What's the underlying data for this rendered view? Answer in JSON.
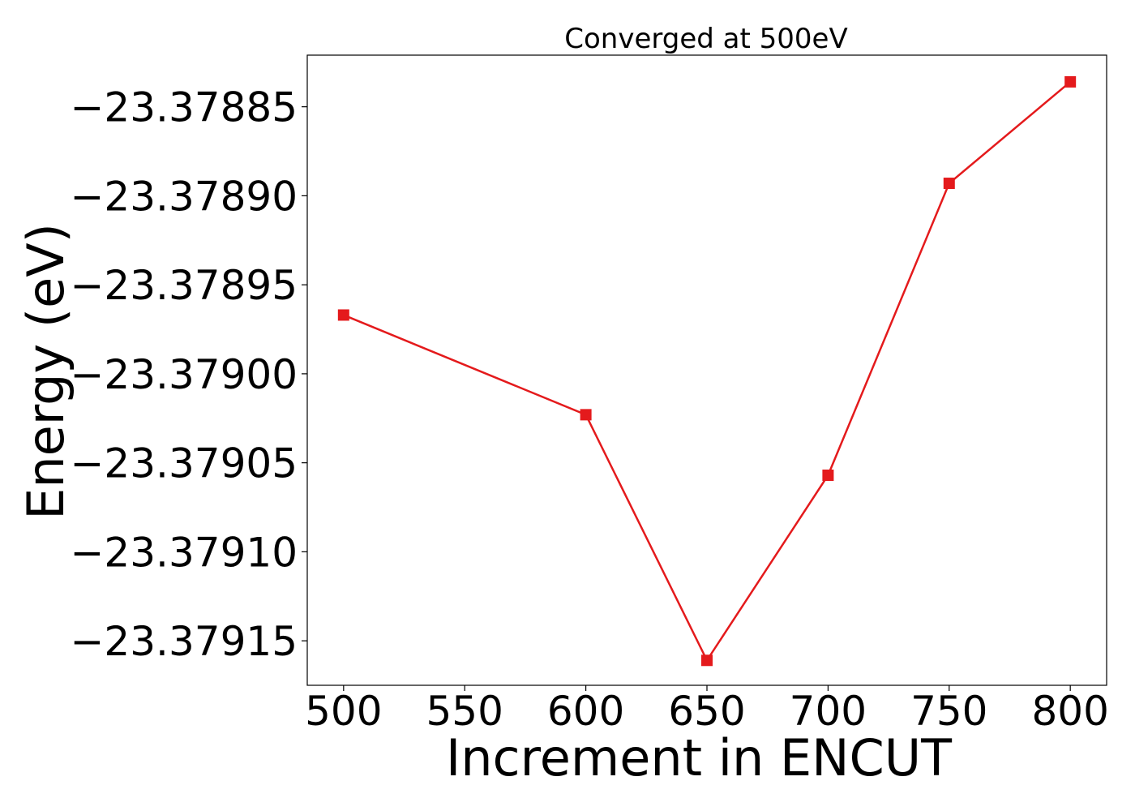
{
  "chart_data": {
    "type": "line",
    "title": "Converged at 500eV",
    "xlabel": "Increment in ENCUT",
    "ylabel": "Energy (eV)",
    "x": [
      500,
      600,
      650,
      700,
      750,
      800
    ],
    "series": [
      {
        "values": [
          -23.378967,
          -23.379023,
          -23.379161,
          -23.379057,
          -23.378893,
          -23.378836
        ],
        "color": "#e41a1c",
        "marker": "square"
      }
    ],
    "xticks": [
      500,
      550,
      600,
      650,
      700,
      750,
      800
    ],
    "xtick_labels": [
      "500",
      "550",
      "600",
      "650",
      "700",
      "750",
      "800"
    ],
    "yticks": [
      -23.37885,
      -23.3789,
      -23.37895,
      -23.379,
      -23.37905,
      -23.3791,
      -23.37915
    ],
    "ytick_labels": [
      "−23.37885",
      "−23.37890",
      "−23.37895",
      "−23.37900",
      "−23.37905",
      "−23.37910",
      "−23.37915"
    ],
    "xlim": [
      485,
      815
    ],
    "ylim": [
      -23.379175,
      -23.378821
    ],
    "grid": false,
    "legend": false
  }
}
